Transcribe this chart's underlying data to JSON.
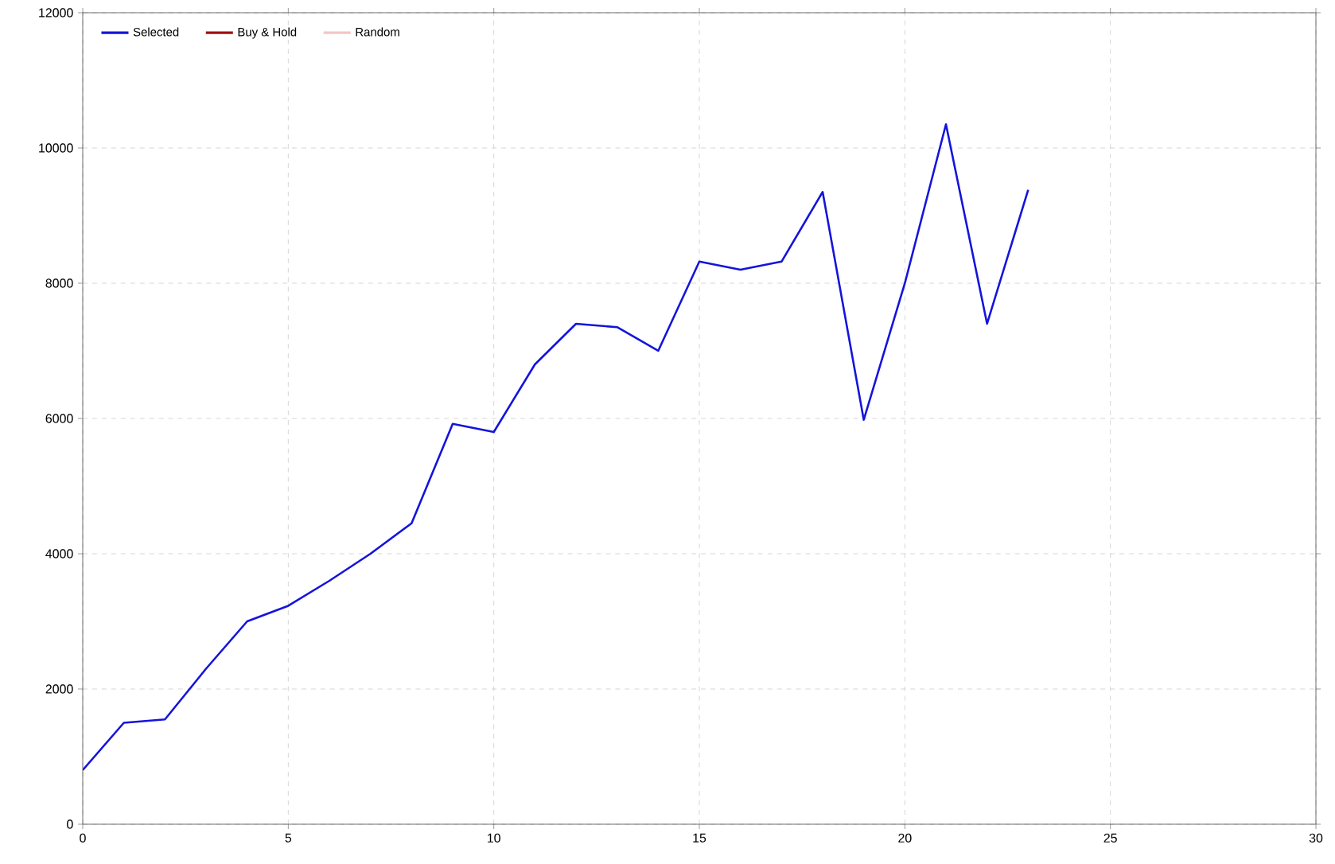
{
  "chart_data": {
    "type": "line",
    "x": [
      0,
      1,
      2,
      3,
      4,
      5,
      6,
      7,
      8,
      9,
      10,
      11,
      12,
      13,
      14,
      15,
      16,
      17,
      18,
      19,
      20,
      21,
      22,
      23
    ],
    "series": [
      {
        "name": "Selected",
        "color": "#1414dc",
        "values": [
          800,
          1500,
          1550,
          2300,
          3000,
          3230,
          3600,
          4000,
          4450,
          5920,
          5800,
          6800,
          7400,
          7350,
          7000,
          8320,
          8200,
          8320,
          9350,
          5980,
          8000,
          10350,
          7400,
          9380
        ]
      },
      {
        "name": "Buy & Hold",
        "color": "#a01010",
        "values": [
          null,
          null,
          null,
          null,
          null,
          null,
          null,
          null,
          null,
          null,
          null,
          null,
          null,
          null,
          null,
          null,
          null,
          null,
          null,
          null,
          null,
          null,
          null,
          null
        ]
      },
      {
        "name": "Random",
        "color": "#f2c6c6",
        "values": [
          null,
          null,
          null,
          null,
          null,
          null,
          null,
          null,
          null,
          null,
          null,
          null,
          null,
          null,
          null,
          null,
          null,
          null,
          null,
          null,
          null,
          null,
          null,
          null
        ]
      }
    ],
    "xlim": [
      0,
      30
    ],
    "ylim": [
      0,
      12000
    ],
    "xticks": [
      0,
      5,
      10,
      15,
      20,
      25,
      30
    ],
    "yticks": [
      0,
      2000,
      4000,
      6000,
      8000,
      10000,
      12000
    ],
    "grid": true,
    "legend": "top left",
    "line_style": "solid",
    "marker": "none"
  }
}
